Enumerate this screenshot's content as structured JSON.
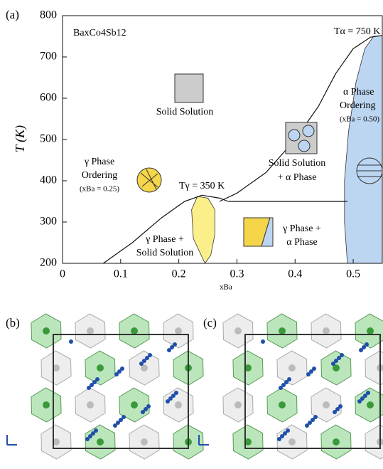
{
  "chart_data": {
    "type": "phase",
    "panel_label": "(a)",
    "ylabel": "T (K)",
    "xlabel": "xBa",
    "xlim": [
      0,
      0.55
    ],
    "ylim": [
      200,
      800
    ],
    "xticks": [
      0,
      0.1,
      0.2,
      0.3,
      0.4,
      0.5
    ],
    "yticks": [
      200,
      300,
      400,
      500,
      600,
      700,
      800
    ],
    "annotations": [
      "BaxCo4Sb12",
      "Tα = 750 K",
      "Tγ = 350 K",
      "Solid Solution",
      "Solid Solution",
      "+ α Phase",
      "α Phase",
      "Ordering",
      "(xBa = 0.50)",
      "γ Phase",
      "Ordering",
      "(xBa = 0.25)",
      "γ Phase +",
      "Solid Solution",
      "γ Phase +",
      "α Phase"
    ],
    "boundaries": [
      {
        "x": [
          0.07,
          0.12,
          0.17,
          0.21,
          0.24,
          0.27,
          0.285
        ],
        "y": [
          200,
          250,
          310,
          350,
          365,
          358,
          350
        ]
      },
      {
        "x": [
          0.27,
          0.3,
          0.35,
          0.4,
          0.44,
          0.47,
          0.5,
          0.53,
          0.55
        ],
        "y": [
          350,
          370,
          420,
          500,
          580,
          660,
          720,
          748,
          752
        ]
      },
      {
        "x": [
          0.285,
          0.49
        ],
        "y": [
          350,
          350
        ]
      }
    ],
    "regions": [
      {
        "color": "#fbef8a",
        "x": [
          0.245,
          0.225,
          0.222,
          0.232,
          0.25,
          0.262,
          0.262,
          0.255,
          0.245
        ],
        "y": [
          200,
          260,
          330,
          362,
          358,
          330,
          270,
          220,
          200
        ]
      },
      {
        "color": "#bcd6f2",
        "x": [
          0.49,
          0.485,
          0.485,
          0.492,
          0.505,
          0.52,
          0.535,
          0.55,
          0.55
        ],
        "y": [
          200,
          300,
          400,
          520,
          640,
          720,
          750,
          752,
          200
        ]
      }
    ],
    "lower_panels": [
      "(b)",
      "(c)"
    ]
  }
}
